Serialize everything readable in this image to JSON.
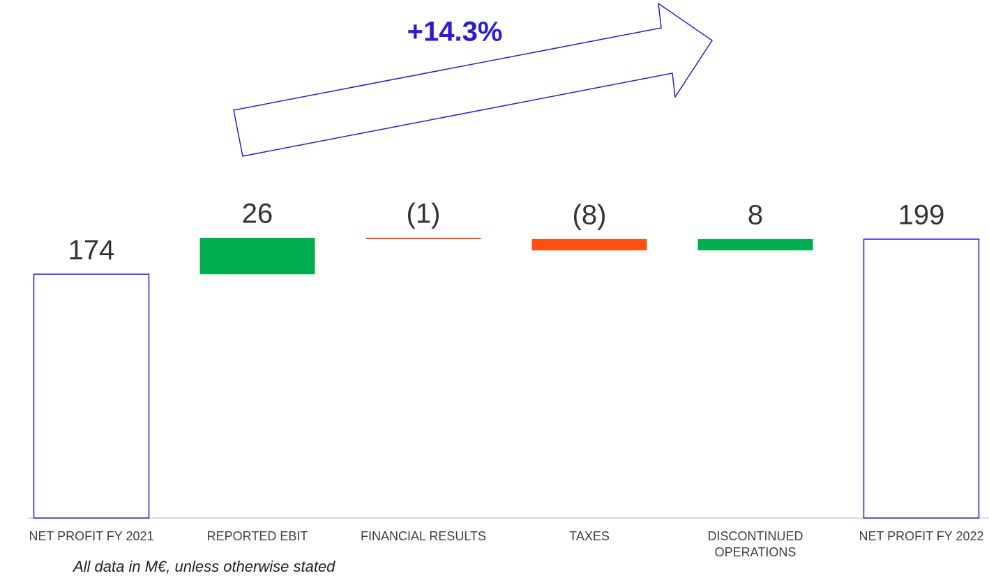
{
  "chart_data": {
    "type": "waterfall",
    "annotation": "+14.3%",
    "footnote": "All data in M€, unless otherwise stated",
    "categories": [
      "NET PROFIT FY 2021",
      "REPORTED EBIT",
      "FINANCIAL RESULTS",
      "TAXES",
      "DISCONTINUED OPERATIONS",
      "NET PROFIT FY 2022"
    ],
    "values": [
      174,
      26,
      -1,
      -8,
      8,
      199
    ],
    "value_labels": [
      "174",
      "26",
      "(1)",
      "(8)",
      "8",
      "199"
    ],
    "kinds": [
      "total",
      "delta",
      "delta",
      "delta",
      "delta",
      "total"
    ],
    "colors": {
      "total": "#2b1bd8",
      "increase": "#00b050",
      "decrease": "#ff5010"
    }
  }
}
